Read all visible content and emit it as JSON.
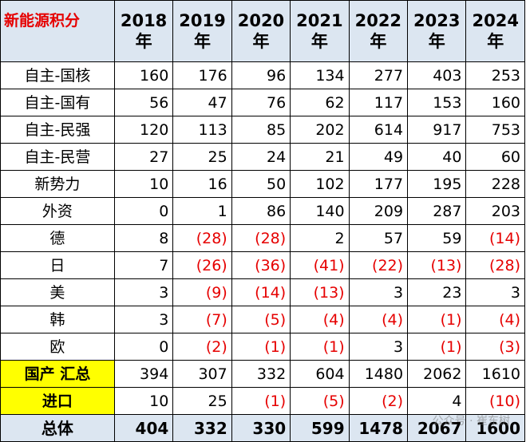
{
  "table": {
    "corner": "新能源积分",
    "years": [
      "2018年",
      "2019年",
      "2020年",
      "2021年",
      "2022年",
      "2023年",
      "2024年"
    ],
    "rows": [
      {
        "label": "自主-国核",
        "values": [
          "160",
          "176",
          "96",
          "134",
          "277",
          "403",
          "253"
        ]
      },
      {
        "label": "自主-国有",
        "values": [
          "56",
          "47",
          "76",
          "62",
          "117",
          "153",
          "160"
        ]
      },
      {
        "label": "自主-民强",
        "values": [
          "120",
          "113",
          "85",
          "202",
          "614",
          "917",
          "753"
        ]
      },
      {
        "label": "自主-民营",
        "values": [
          "27",
          "25",
          "24",
          "21",
          "49",
          "40",
          "60"
        ]
      },
      {
        "label": "新势力",
        "values": [
          "10",
          "16",
          "50",
          "102",
          "177",
          "195",
          "228"
        ]
      },
      {
        "label": "外资",
        "values": [
          "0",
          "1",
          "86",
          "140",
          "209",
          "287",
          "203"
        ]
      },
      {
        "label": "德",
        "values": [
          "8",
          "(28)",
          "(28)",
          "2",
          "57",
          "59",
          "(14)"
        ]
      },
      {
        "label": "日",
        "values": [
          "7",
          "(26)",
          "(36)",
          "(41)",
          "(22)",
          "(13)",
          "(28)"
        ]
      },
      {
        "label": "美",
        "values": [
          "3",
          "(9)",
          "(14)",
          "(13)",
          "3",
          "23",
          "3"
        ]
      },
      {
        "label": "韩",
        "values": [
          "3",
          "(7)",
          "(5)",
          "(4)",
          "(4)",
          "(1)",
          "(4)"
        ]
      },
      {
        "label": "欧",
        "values": [
          "0",
          "(2)",
          "(1)",
          "(1)",
          "3",
          "(1)",
          "(3)"
        ]
      },
      {
        "label": "国产 汇总",
        "values": [
          "394",
          "307",
          "332",
          "604",
          "1480",
          "2062",
          "1610"
        ]
      },
      {
        "label": "进口",
        "values": [
          "10",
          "25",
          "(1)",
          "(5)",
          "(2)",
          "4",
          "(10)"
        ]
      },
      {
        "label": "总体",
        "values": [
          "404",
          "332",
          "330",
          "599",
          "1478",
          "2067",
          "1600"
        ]
      }
    ]
  },
  "watermark": "公众号 · 崔东树",
  "colors": {
    "header_bg": "#dce6f1",
    "highlight": "#ffff00",
    "negative": "#e60000",
    "corner_text": "#e60000"
  }
}
